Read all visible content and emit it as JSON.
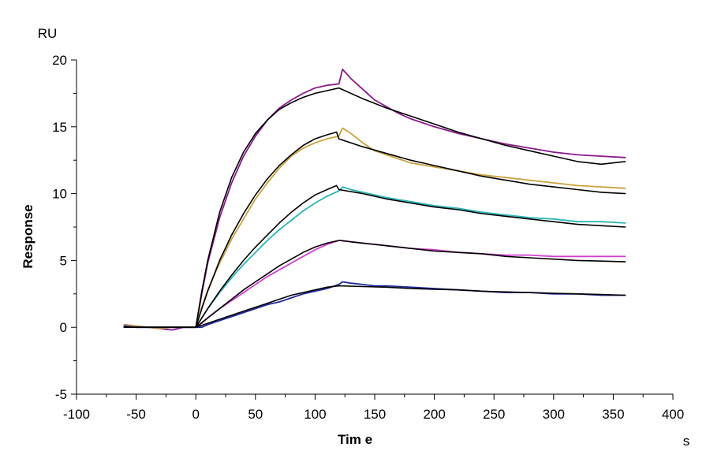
{
  "chart_data": {
    "type": "line",
    "xlabel": "Tim e",
    "ylabel": "Response",
    "y_unit": "RU",
    "x_unit": "s",
    "xlim": [
      -100,
      400
    ],
    "ylim": [
      -5,
      20
    ],
    "x_ticks": [
      -100,
      -50,
      0,
      50,
      100,
      150,
      200,
      250,
      300,
      350,
      400
    ],
    "y_ticks": [
      -5,
      0,
      5,
      10,
      15,
      20
    ],
    "x_tick_labels": [
      "-100",
      "-50",
      "0",
      "50",
      "100",
      "150",
      "200",
      "250",
      "300",
      "350",
      "400"
    ],
    "y_tick_labels": [
      "-5",
      "0",
      "5",
      "10",
      "15",
      "20"
    ],
    "grid": false,
    "legend": "none",
    "association_end": 120,
    "series": [
      {
        "color": "#8B1A8B",
        "role": "measured",
        "x": [
          -60,
          -50,
          -40,
          -30,
          -20,
          -10,
          0,
          5,
          10,
          20,
          30,
          40,
          50,
          60,
          70,
          80,
          90,
          100,
          110,
          120,
          123,
          130,
          140,
          150,
          160,
          170,
          180,
          200,
          220,
          240,
          260,
          280,
          300,
          320,
          340,
          360
        ],
        "y": [
          0.2,
          0.1,
          0.0,
          -0.1,
          -0.2,
          0.0,
          0.0,
          2.5,
          4.8,
          8.2,
          10.8,
          12.8,
          14.3,
          15.5,
          16.4,
          17.0,
          17.5,
          17.9,
          18.1,
          18.2,
          19.3,
          18.6,
          17.8,
          17.0,
          16.5,
          16.0,
          15.6,
          15.0,
          14.5,
          14.1,
          13.7,
          13.4,
          13.1,
          12.9,
          12.8,
          12.7
        ]
      },
      {
        "color": "#C9A23A",
        "role": "measured",
        "x": [
          -60,
          -50,
          -40,
          -30,
          -20,
          -10,
          0,
          5,
          10,
          20,
          30,
          40,
          50,
          60,
          70,
          80,
          90,
          100,
          110,
          120,
          123,
          130,
          140,
          150,
          160,
          180,
          200,
          220,
          240,
          260,
          280,
          300,
          320,
          340,
          360
        ],
        "y": [
          0.2,
          0.1,
          0.0,
          -0.1,
          0.0,
          0.0,
          0.0,
          1.5,
          2.8,
          4.8,
          6.6,
          8.1,
          9.6,
          10.8,
          11.9,
          12.8,
          13.4,
          13.8,
          14.1,
          14.3,
          14.9,
          14.5,
          13.8,
          13.2,
          12.9,
          12.3,
          12.0,
          11.7,
          11.4,
          11.2,
          11.0,
          10.8,
          10.6,
          10.5,
          10.4
        ]
      },
      {
        "color": "#2BB5B5",
        "role": "measured",
        "x": [
          -60,
          -50,
          -40,
          -30,
          -20,
          -10,
          0,
          5,
          10,
          20,
          30,
          40,
          50,
          60,
          70,
          80,
          90,
          100,
          110,
          120,
          123,
          130,
          140,
          150,
          160,
          180,
          200,
          220,
          240,
          260,
          280,
          300,
          320,
          340,
          360
        ],
        "y": [
          0.1,
          0.0,
          0.0,
          0.0,
          0.0,
          0.0,
          0.0,
          0.7,
          1.4,
          2.6,
          3.7,
          4.7,
          5.6,
          6.5,
          7.3,
          8.0,
          8.7,
          9.3,
          9.8,
          10.2,
          10.5,
          10.3,
          10.1,
          9.9,
          9.7,
          9.4,
          9.1,
          8.9,
          8.6,
          8.4,
          8.2,
          8.1,
          7.9,
          7.9,
          7.8
        ]
      },
      {
        "color": "#D040D0",
        "role": "measured",
        "x": [
          -60,
          -50,
          -40,
          -30,
          -20,
          -10,
          0,
          5,
          10,
          20,
          30,
          40,
          50,
          60,
          70,
          80,
          90,
          100,
          110,
          120,
          123,
          130,
          140,
          150,
          160,
          180,
          200,
          220,
          240,
          260,
          280,
          300,
          320,
          340,
          360
        ],
        "y": [
          0.1,
          0.0,
          0.0,
          0.0,
          0.0,
          0.0,
          0.0,
          0.3,
          0.7,
          1.4,
          2.0,
          2.6,
          3.2,
          3.8,
          4.3,
          4.8,
          5.3,
          5.8,
          6.2,
          6.5,
          6.5,
          6.4,
          6.3,
          6.2,
          6.1,
          5.9,
          5.8,
          5.6,
          5.5,
          5.4,
          5.4,
          5.3,
          5.3,
          5.3,
          5.3
        ]
      },
      {
        "color": "#1F2A9E",
        "role": "measured",
        "x": [
          -60,
          -50,
          -40,
          -30,
          -20,
          -10,
          0,
          5,
          10,
          20,
          30,
          40,
          50,
          60,
          70,
          80,
          90,
          100,
          110,
          120,
          123,
          130,
          140,
          150,
          160,
          180,
          200,
          220,
          240,
          260,
          280,
          300,
          320,
          340,
          360
        ],
        "y": [
          0.1,
          0.0,
          0.0,
          0.0,
          0.0,
          0.0,
          0.0,
          0.0,
          0.2,
          0.5,
          0.8,
          1.1,
          1.4,
          1.7,
          1.9,
          2.2,
          2.5,
          2.7,
          2.9,
          3.2,
          3.4,
          3.3,
          3.2,
          3.1,
          3.1,
          3.0,
          2.9,
          2.8,
          2.7,
          2.6,
          2.6,
          2.5,
          2.5,
          2.4,
          2.4
        ]
      },
      {
        "color": "#000000",
        "role": "fit",
        "x": [
          -60,
          0,
          5,
          10,
          20,
          30,
          40,
          50,
          60,
          70,
          80,
          90,
          100,
          110,
          120,
          140,
          160,
          180,
          200,
          220,
          240,
          260,
          280,
          300,
          320,
          340,
          360
        ],
        "y": [
          0.0,
          0.0,
          2.7,
          5.0,
          8.6,
          11.2,
          13.1,
          14.5,
          15.5,
          16.3,
          16.8,
          17.2,
          17.5,
          17.7,
          17.9,
          17.1,
          16.4,
          15.8,
          15.2,
          14.6,
          14.1,
          13.6,
          13.2,
          12.8,
          12.4,
          12.2,
          12.4
        ]
      },
      {
        "color": "#000000",
        "role": "fit",
        "x": [
          -60,
          0,
          5,
          10,
          20,
          30,
          40,
          50,
          60,
          70,
          80,
          90,
          100,
          110,
          118,
          120,
          140,
          160,
          180,
          200,
          220,
          240,
          260,
          280,
          300,
          320,
          340,
          360
        ],
        "y": [
          0.0,
          0.0,
          1.4,
          2.7,
          5.0,
          6.9,
          8.5,
          9.9,
          11.1,
          12.1,
          12.9,
          13.6,
          14.1,
          14.4,
          14.6,
          14.1,
          13.5,
          13.0,
          12.5,
          12.1,
          11.7,
          11.3,
          11.0,
          10.7,
          10.5,
          10.3,
          10.1,
          10.0
        ]
      },
      {
        "color": "#000000",
        "role": "fit",
        "x": [
          -60,
          0,
          5,
          10,
          20,
          30,
          40,
          50,
          60,
          70,
          80,
          90,
          100,
          110,
          118,
          120,
          140,
          160,
          180,
          200,
          220,
          240,
          260,
          280,
          300,
          320,
          340,
          360
        ],
        "y": [
          0.0,
          0.0,
          0.7,
          1.4,
          2.7,
          3.9,
          5.0,
          6.0,
          6.9,
          7.8,
          8.6,
          9.3,
          9.9,
          10.3,
          10.6,
          10.3,
          10.0,
          9.6,
          9.3,
          9.0,
          8.8,
          8.5,
          8.3,
          8.1,
          7.9,
          7.7,
          7.6,
          7.5
        ]
      },
      {
        "color": "#000000",
        "role": "fit",
        "x": [
          -60,
          0,
          5,
          10,
          20,
          30,
          40,
          50,
          60,
          70,
          80,
          90,
          100,
          110,
          120,
          140,
          160,
          180,
          200,
          220,
          240,
          260,
          280,
          300,
          320,
          340,
          360
        ],
        "y": [
          0.0,
          0.0,
          0.35,
          0.7,
          1.4,
          2.1,
          2.8,
          3.4,
          4.0,
          4.6,
          5.1,
          5.6,
          6.0,
          6.3,
          6.5,
          6.3,
          6.1,
          5.9,
          5.7,
          5.6,
          5.5,
          5.3,
          5.2,
          5.1,
          5.0,
          4.95,
          4.9
        ]
      },
      {
        "color": "#000000",
        "role": "fit",
        "x": [
          -60,
          0,
          5,
          10,
          20,
          30,
          40,
          50,
          60,
          70,
          80,
          90,
          100,
          110,
          120,
          140,
          160,
          180,
          200,
          220,
          240,
          260,
          280,
          300,
          320,
          340,
          360
        ],
        "y": [
          0.0,
          0.0,
          0.15,
          0.3,
          0.6,
          0.9,
          1.2,
          1.5,
          1.8,
          2.1,
          2.4,
          2.6,
          2.8,
          3.0,
          3.1,
          3.05,
          3.0,
          2.9,
          2.85,
          2.8,
          2.7,
          2.65,
          2.6,
          2.55,
          2.5,
          2.45,
          2.4
        ]
      }
    ]
  }
}
